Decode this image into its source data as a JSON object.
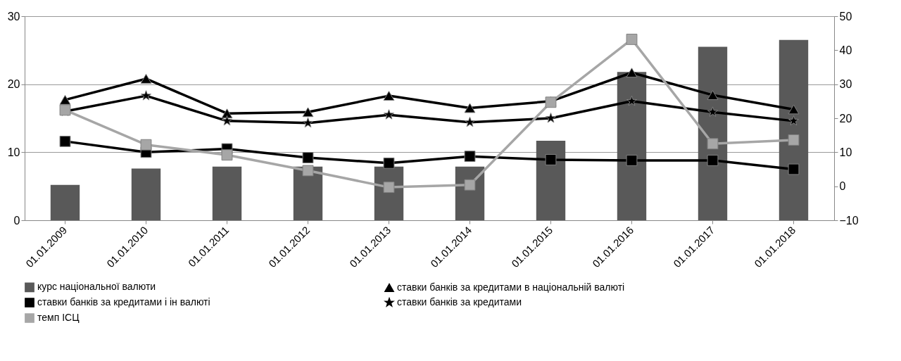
{
  "chart_data": {
    "type": "line",
    "categories": [
      "01.01.2009",
      "01.01.2010",
      "01.01.2011",
      "01.01.2012",
      "01.01.2013",
      "01.01.2014",
      "01.01.2015",
      "01.01.2016",
      "01.01.2017",
      "01.01.2018"
    ],
    "series": [
      {
        "name": "курс національної валюти",
        "type": "bar",
        "color": "#595959",
        "values": [
          5.2,
          7.6,
          7.9,
          7.9,
          7.9,
          7.9,
          11.7,
          21.8,
          25.5,
          26.5
        ]
      },
      {
        "name": "ставки банків за  кредитами в національній валюті",
        "marker": "triangle",
        "color": "#000000",
        "values": [
          17.7,
          20.8,
          15.7,
          15.9,
          18.3,
          16.5,
          17.5,
          21.7,
          18.4,
          16.3
        ]
      },
      {
        "name": "ставки банків за  кредитами і ін валюті",
        "marker": "square",
        "color": "#000000",
        "values": [
          11.6,
          10.0,
          10.5,
          9.2,
          8.4,
          9.4,
          8.9,
          8.8,
          8.8,
          7.5
        ]
      },
      {
        "name": "ставки банків за  кредитами",
        "marker": "star",
        "color": "#000000",
        "values": [
          16.0,
          18.3,
          14.6,
          14.3,
          15.5,
          14.4,
          15.0,
          17.5,
          15.9,
          14.6
        ]
      },
      {
        "name": "темп ІСЦ",
        "marker": "square",
        "axis": "y2",
        "color": "#a6a6a6",
        "values": [
          22.4,
          12.2,
          9.2,
          4.6,
          -0.3,
          0.4,
          24.7,
          43.2,
          12.5,
          13.6
        ]
      }
    ],
    "ylim": [
      0,
      30
    ],
    "yticks": [
      0,
      10,
      20,
      30
    ],
    "y2lim": [
      -10,
      50
    ],
    "y2ticks": [
      -10,
      0,
      10,
      20,
      30,
      40,
      50
    ],
    "grid": "y",
    "legend": "bottom"
  }
}
